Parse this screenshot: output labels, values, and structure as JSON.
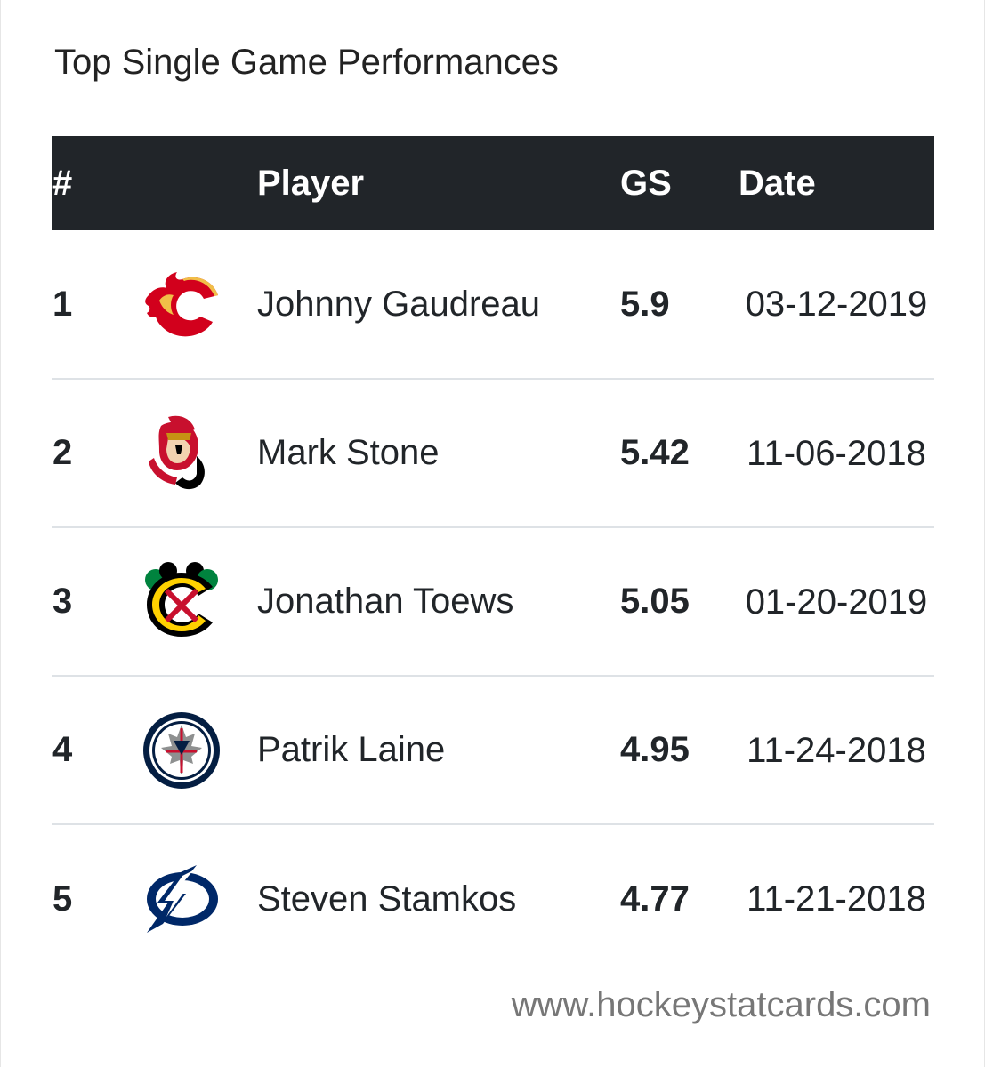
{
  "title": "Top Single Game Performances",
  "table": {
    "headers": {
      "rank": "#",
      "player": "Player",
      "gs": "GS",
      "date": "Date"
    },
    "rows": [
      {
        "rank": "1",
        "logo": "calgary-flames-logo",
        "player": "Johnny Gaudreau",
        "gs": "5.9",
        "date": "03-12-2019"
      },
      {
        "rank": "2",
        "logo": "ottawa-senators-logo",
        "player": "Mark Stone",
        "gs": "5.42",
        "date": "11-06-2018"
      },
      {
        "rank": "3",
        "logo": "chicago-blackhawks-logo",
        "player": "Jonathan Toews",
        "gs": "5.05",
        "date": "01-20-2019"
      },
      {
        "rank": "4",
        "logo": "winnipeg-jets-logo",
        "player": "Patrik Laine",
        "gs": "4.95",
        "date": "11-24-2018"
      },
      {
        "rank": "5",
        "logo": "tampa-bay-lightning-logo",
        "player": "Steven Stamkos",
        "gs": "4.77",
        "date": "11-21-2018"
      }
    ]
  },
  "footer": "www.hockeystatcards.com",
  "colors": {
    "header_bg": "#212529",
    "header_text": "#ffffff",
    "row_divider": "#dee2e6",
    "footer_text": "#777777"
  }
}
